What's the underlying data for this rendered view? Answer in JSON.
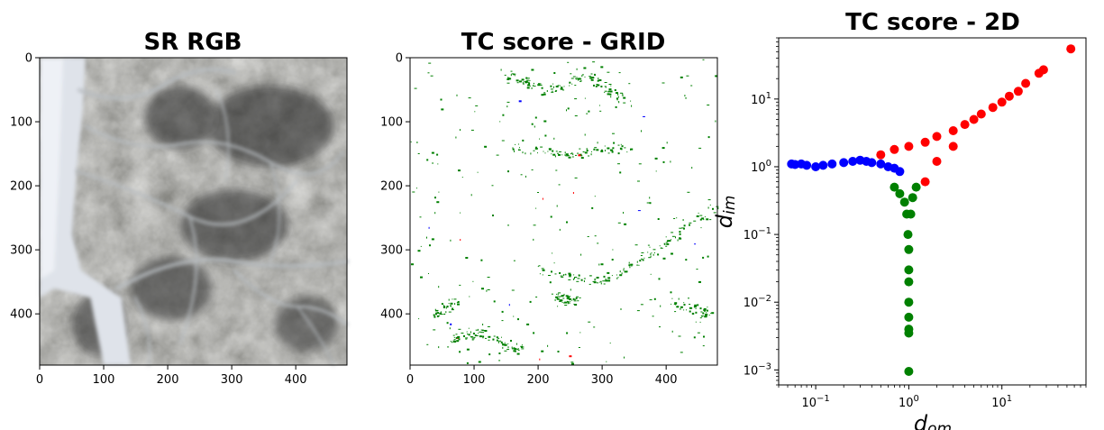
{
  "chart_data": [
    {
      "type": "image",
      "title": "SR RGB",
      "xticks": [
        "0",
        "100",
        "200",
        "300",
        "400"
      ],
      "yticks": [
        "0",
        "100",
        "200",
        "300",
        "400"
      ],
      "xlim": [
        0,
        480
      ],
      "ylim": [
        480,
        0
      ],
      "content": "grayscale satellite image of desert terrain with pale dry riverbed on left and branching bright wadi channels across darker rocky hills"
    },
    {
      "type": "image",
      "title": "TC score - GRID",
      "xticks": [
        "0",
        "100",
        "200",
        "300",
        "400"
      ],
      "yticks": [
        "0",
        "100",
        "200",
        "300",
        "400"
      ],
      "xlim": [
        0,
        480
      ],
      "ylim": [
        480,
        0
      ],
      "colors": {
        "background": "#ffffff",
        "mostly": "#008000",
        "few": [
          "#ff0000",
          "#0000ff"
        ]
      },
      "content": "mostly white grid with sparse green pixel clusters following channel edges, a few red and blue pixels"
    },
    {
      "type": "scatter",
      "title": "TC score - 2D",
      "xscale": "log",
      "yscale": "log",
      "xlim": [
        0.04,
        80
      ],
      "ylim": [
        0.0006,
        80
      ],
      "xlabel": "d_om",
      "ylabel": "d_im",
      "xticks": [
        "10^-1",
        "10^0",
        "10^1"
      ],
      "yticks": [
        "10^-3",
        "10^-2",
        "10^-1",
        "10^0",
        "10^1"
      ],
      "series": [
        {
          "color": "#0000ff",
          "x": [
            0.055,
            0.06,
            0.07,
            0.08,
            0.1,
            0.12,
            0.15,
            0.2,
            0.25,
            0.3,
            0.35,
            0.4,
            0.5,
            0.6,
            0.7,
            0.8
          ],
          "y": [
            1.1,
            1.08,
            1.1,
            1.05,
            1.0,
            1.05,
            1.1,
            1.15,
            1.2,
            1.25,
            1.2,
            1.15,
            1.1,
            1.0,
            0.95,
            0.85
          ]
        },
        {
          "color": "#ff0000",
          "x": [
            0.5,
            0.7,
            1.0,
            1.5,
            2.0,
            3.0,
            4.0,
            5.0,
            6.0,
            8.0,
            10.0,
            12.0,
            15.0,
            18.0,
            25.0,
            28.0,
            55.0,
            1.5,
            2.0,
            3.0
          ],
          "y": [
            1.5,
            1.8,
            2.0,
            2.3,
            2.8,
            3.4,
            4.2,
            5.0,
            6.0,
            7.5,
            9.0,
            11.0,
            13.0,
            17.0,
            24.0,
            27.0,
            55.0,
            0.6,
            1.2,
            2.0
          ]
        },
        {
          "color": "#008000",
          "x": [
            0.7,
            0.8,
            0.9,
            0.95,
            0.98,
            1.0,
            1.0,
            1.0,
            1.0,
            1.0,
            1.0,
            1.0,
            1.0,
            1.05,
            1.1,
            1.2
          ],
          "y": [
            0.5,
            0.4,
            0.3,
            0.2,
            0.1,
            0.06,
            0.03,
            0.02,
            0.01,
            0.006,
            0.004,
            0.0035,
            0.00095,
            0.2,
            0.35,
            0.5
          ]
        }
      ]
    }
  ]
}
